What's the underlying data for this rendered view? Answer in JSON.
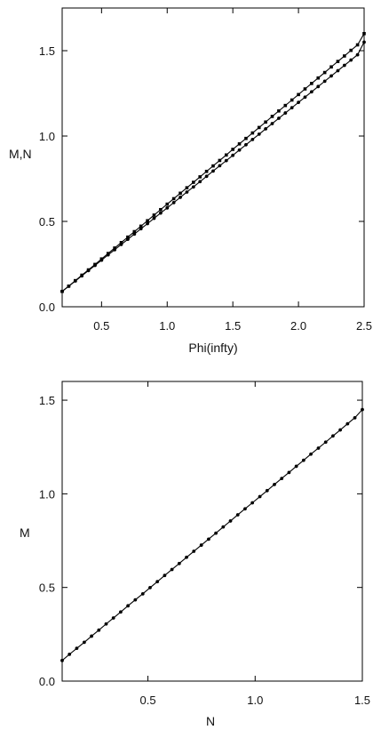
{
  "chart_data": [
    {
      "type": "line",
      "title": "",
      "xlabel": "Phi(infty)",
      "ylabel": "M,N",
      "xlim": [
        0.2,
        2.5
      ],
      "ylim": [
        0.0,
        1.75
      ],
      "xticks": [
        "0.5",
        "1.0",
        "1.5",
        "2.0",
        "2.5"
      ],
      "yticks": [
        "0.0",
        "0.5",
        "1.0",
        "1.5"
      ],
      "grid": false,
      "series": [
        {
          "marker": "square",
          "x": [
            0.2,
            0.25,
            0.3,
            0.35,
            0.4,
            0.45,
            0.5,
            0.55,
            0.6,
            0.65,
            0.7,
            0.75,
            0.8,
            0.85,
            0.9,
            0.95,
            1.0,
            1.05,
            1.1,
            1.15,
            1.2,
            1.25,
            1.3,
            1.35,
            1.4,
            1.45,
            1.5,
            1.55,
            1.6,
            1.65,
            1.7,
            1.75,
            1.8,
            1.85,
            1.9,
            1.95,
            2.0,
            2.05,
            2.1,
            2.15,
            2.2,
            2.25,
            2.3,
            2.35,
            2.4,
            2.45,
            2.5
          ],
          "values": [
            0.09,
            0.121,
            0.153,
            0.185,
            0.216,
            0.248,
            0.28,
            0.312,
            0.344,
            0.376,
            0.408,
            0.44,
            0.472,
            0.504,
            0.537,
            0.569,
            0.601,
            0.633,
            0.665,
            0.697,
            0.729,
            0.761,
            0.793,
            0.825,
            0.857,
            0.889,
            0.922,
            0.954,
            0.986,
            1.018,
            1.05,
            1.082,
            1.115,
            1.147,
            1.179,
            1.211,
            1.243,
            1.276,
            1.308,
            1.34,
            1.372,
            1.405,
            1.437,
            1.469,
            1.502,
            1.534,
            1.6
          ]
        },
        {
          "marker": "circle",
          "x": [
            0.2,
            0.25,
            0.3,
            0.35,
            0.4,
            0.45,
            0.5,
            0.55,
            0.6,
            0.65,
            0.7,
            0.75,
            0.8,
            0.85,
            0.9,
            0.95,
            1.0,
            1.05,
            1.1,
            1.15,
            1.2,
            1.25,
            1.3,
            1.35,
            1.4,
            1.45,
            1.5,
            1.55,
            1.6,
            1.65,
            1.7,
            1.75,
            1.8,
            1.85,
            1.9,
            1.95,
            2.0,
            2.05,
            2.1,
            2.15,
            2.2,
            2.25,
            2.3,
            2.35,
            2.4,
            2.45,
            2.5
          ],
          "values": [
            0.09,
            0.12,
            0.151,
            0.181,
            0.212,
            0.242,
            0.273,
            0.304,
            0.334,
            0.365,
            0.395,
            0.426,
            0.457,
            0.487,
            0.518,
            0.549,
            0.579,
            0.61,
            0.641,
            0.672,
            0.702,
            0.733,
            0.764,
            0.795,
            0.826,
            0.856,
            0.887,
            0.918,
            0.949,
            0.98,
            1.011,
            1.042,
            1.073,
            1.104,
            1.135,
            1.166,
            1.197,
            1.228,
            1.259,
            1.29,
            1.321,
            1.352,
            1.383,
            1.414,
            1.445,
            1.476,
            1.55
          ]
        }
      ]
    },
    {
      "type": "line",
      "title": "",
      "xlabel": "N",
      "ylabel": "M",
      "xlim": [
        0.1,
        1.5
      ],
      "ylim": [
        0.0,
        1.6
      ],
      "xticks": [
        "0.5",
        "1.0",
        "1.5"
      ],
      "yticks": [
        "0.0",
        "0.5",
        "1.0",
        "1.5"
      ],
      "grid": false,
      "series": [
        {
          "marker": "circle",
          "x": [
            0.1,
            0.134,
            0.168,
            0.203,
            0.237,
            0.271,
            0.305,
            0.339,
            0.373,
            0.407,
            0.441,
            0.476,
            0.51,
            0.544,
            0.578,
            0.612,
            0.646,
            0.68,
            0.714,
            0.749,
            0.783,
            0.817,
            0.851,
            0.885,
            0.919,
            0.953,
            0.987,
            1.022,
            1.056,
            1.09,
            1.124,
            1.158,
            1.192,
            1.226,
            1.26,
            1.295,
            1.329,
            1.363,
            1.397,
            1.431,
            1.465,
            1.5
          ],
          "values": [
            0.11,
            0.143,
            0.175,
            0.207,
            0.24,
            0.272,
            0.305,
            0.337,
            0.369,
            0.402,
            0.434,
            0.466,
            0.499,
            0.531,
            0.564,
            0.596,
            0.628,
            0.661,
            0.693,
            0.726,
            0.758,
            0.79,
            0.823,
            0.855,
            0.888,
            0.92,
            0.952,
            0.985,
            1.017,
            1.05,
            1.082,
            1.114,
            1.147,
            1.179,
            1.212,
            1.244,
            1.276,
            1.309,
            1.341,
            1.374,
            1.406,
            1.45
          ]
        }
      ]
    }
  ]
}
